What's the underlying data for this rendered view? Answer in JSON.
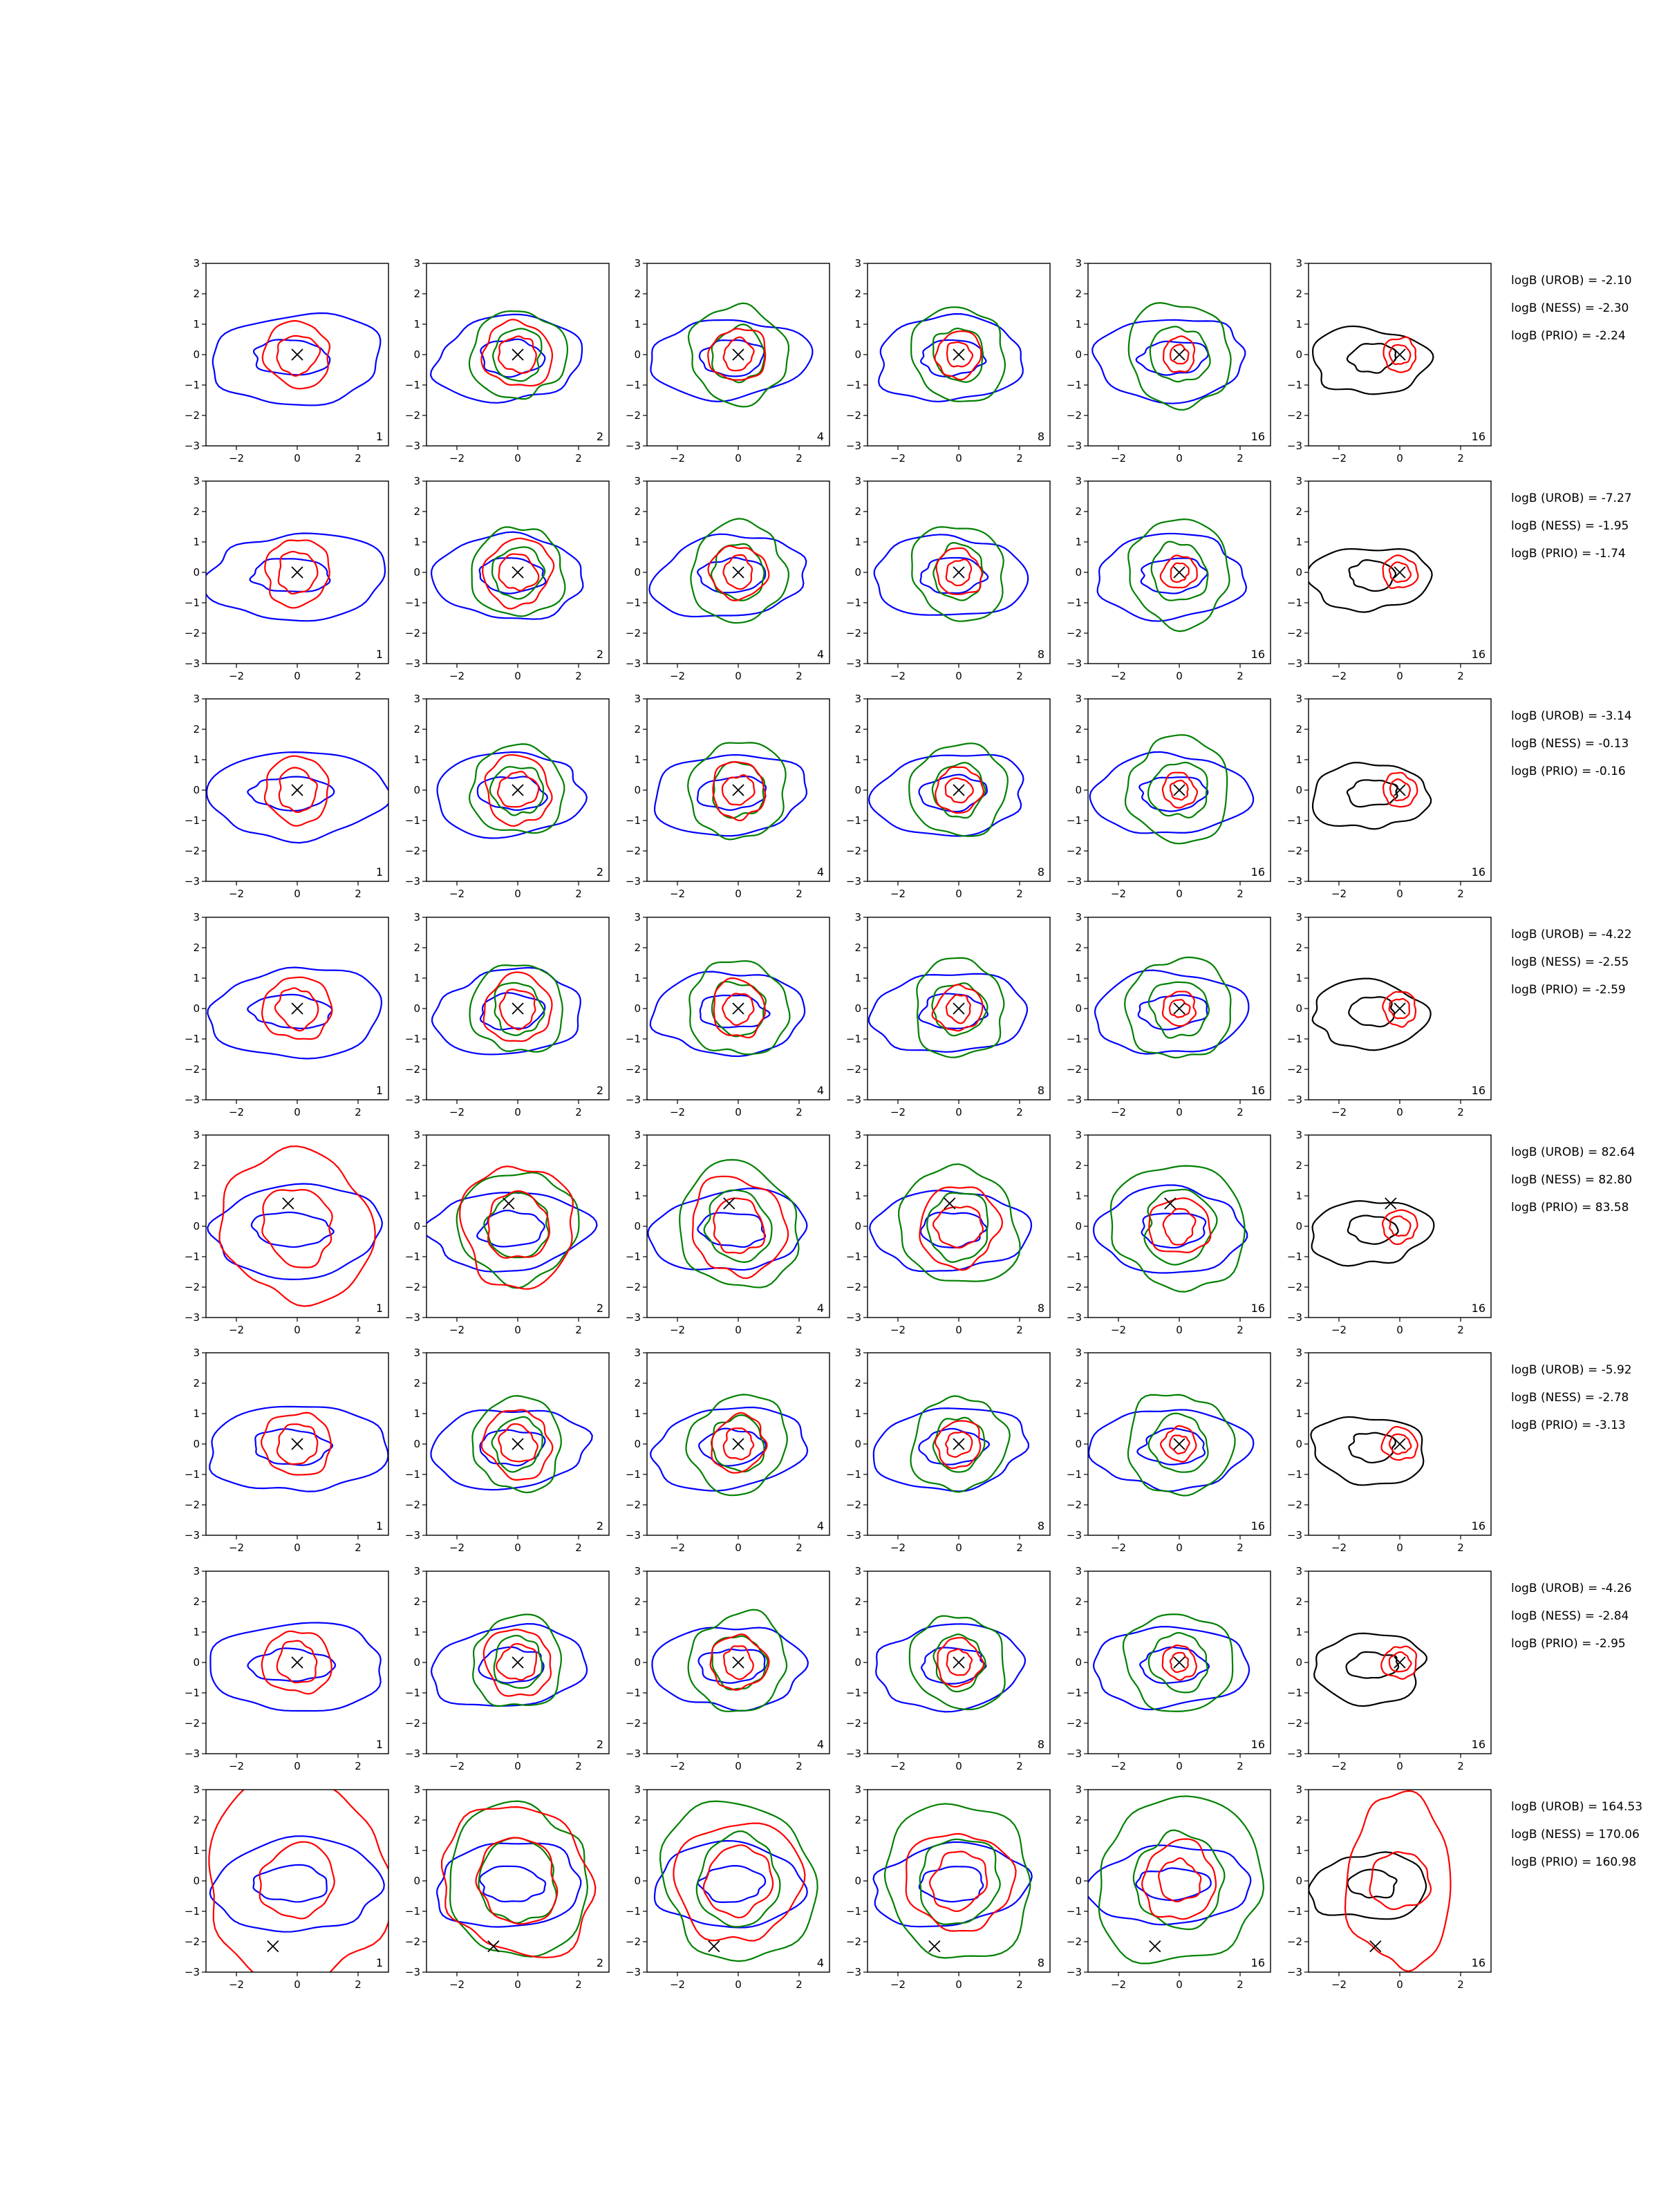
{
  "figure": {
    "colors": {
      "blue": "#0000ff",
      "red": "#ff0000",
      "green": "#008000",
      "black": "#000000"
    }
  },
  "chart_data": {
    "type": "contour",
    "grid": false,
    "axes": {
      "xlim": [
        -3,
        3
      ],
      "ylim": [
        -3,
        3
      ],
      "x_ticks": [
        "−2",
        "0",
        "2"
      ],
      "y_ticks": [
        "−3",
        "−2",
        "−1",
        "0",
        "1",
        "2",
        "3"
      ]
    },
    "columns": [
      {
        "label": "1",
        "series": [
          "blue",
          "red"
        ]
      },
      {
        "label": "2",
        "series": [
          "blue",
          "green",
          "red"
        ]
      },
      {
        "label": "4",
        "series": [
          "blue",
          "green",
          "red"
        ]
      },
      {
        "label": "8",
        "series": [
          "blue",
          "green",
          "red"
        ]
      },
      {
        "label": "16",
        "series": [
          "blue",
          "green",
          "red"
        ]
      },
      {
        "label": "16",
        "series": [
          "black",
          "red"
        ]
      }
    ],
    "rows": [
      {
        "marker": [
          0,
          0
        ],
        "texts": [
          "logB (UROB) = -2.10",
          "logB (NESS) = -2.30",
          "logB (PRIO) = -2.24"
        ]
      },
      {
        "marker": [
          0,
          0
        ],
        "texts": [
          "logB (UROB) = -7.27",
          "logB (NESS) = -1.95",
          "logB (PRIO) = -1.74"
        ]
      },
      {
        "marker": [
          0,
          0
        ],
        "texts": [
          "logB (UROB) = -3.14",
          "logB (NESS) = -0.13",
          "logB (PRIO) = -0.16"
        ]
      },
      {
        "marker": [
          0,
          0
        ],
        "texts": [
          "logB (UROB) = -4.22",
          "logB (NESS) = -2.55",
          "logB (PRIO) = -2.59"
        ]
      },
      {
        "marker": [
          -0.3,
          0.75
        ],
        "texts": [
          "logB (UROB) = 82.64",
          "logB (NESS) = 82.80",
          "logB (PRIO) = 83.58"
        ]
      },
      {
        "marker": [
          0,
          0
        ],
        "texts": [
          "logB (UROB) = -5.92",
          "logB (NESS) = -2.78",
          "logB (PRIO) = -3.13"
        ]
      },
      {
        "marker": [
          0,
          0
        ],
        "texts": [
          "logB (UROB) = -4.26",
          "logB (NESS) = -2.84",
          "logB (PRIO) = -2.95"
        ]
      },
      {
        "marker": [
          -0.8,
          -2.15
        ],
        "texts": [
          "logB (UROB) = 164.53",
          "logB (NESS) = 170.06",
          "logB (PRIO) = 160.98"
        ]
      }
    ]
  }
}
